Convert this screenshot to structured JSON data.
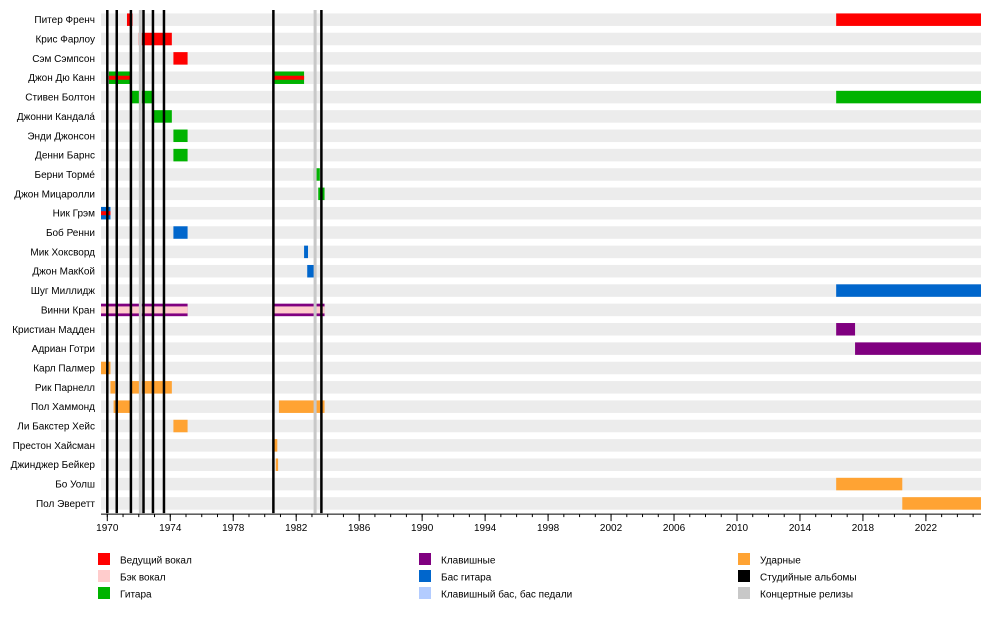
{
  "chart_data": {
    "type": "timeline",
    "x_axis": {
      "min": 1969.6,
      "max": 2025.5,
      "ticks": [
        "1970",
        "1974",
        "1978",
        "1982",
        "1986",
        "1990",
        "1994",
        "1998",
        "2002",
        "2006",
        "2010",
        "2014",
        "2018",
        "2022"
      ]
    },
    "colors": {
      "lead_vocals": "#ff0000",
      "backing_vocals": "#ffcccc",
      "guitar": "#00b300",
      "keyboards": "#800080",
      "bass": "#0066cc",
      "keyboard_bass": "#b3ccff",
      "drums": "#ffa333",
      "studio_albums": "#000000",
      "live_releases": "#c8c8c8",
      "row_band": "#ececec"
    },
    "members": [
      {
        "name": "Питер Френч",
        "bars": [
          {
            "role": "lead_vocals",
            "start": 1971.25,
            "end": 1971.6
          },
          {
            "role": "lead_vocals",
            "start": 2016.3,
            "end": 2025.5
          }
        ]
      },
      {
        "name": "Крис Фарлоу",
        "bars": [
          {
            "role": "lead_vocals",
            "start": 1972.0,
            "end": 1974.1
          }
        ]
      },
      {
        "name": "Сэм Сэмпсон",
        "bars": [
          {
            "role": "lead_vocals",
            "start": 1974.2,
            "end": 1975.1
          }
        ]
      },
      {
        "name": "Джон Дю Канн",
        "bars": [
          {
            "role": "guitar",
            "start": 1970.1,
            "end": 1971.5,
            "inner": "lead_vocals"
          },
          {
            "role": "guitar",
            "start": 1980.5,
            "end": 1982.5,
            "inner": "lead_vocals"
          }
        ]
      },
      {
        "name": "Стивен Болтон",
        "bars": [
          {
            "role": "guitar",
            "start": 1971.5,
            "end": 1972.9
          },
          {
            "role": "guitar",
            "start": 2016.3,
            "end": 2025.5
          }
        ]
      },
      {
        "name": "Джонни Кандалá",
        "bars": [
          {
            "role": "guitar",
            "start": 1972.9,
            "end": 1974.1
          }
        ]
      },
      {
        "name": "Энди Джонсон",
        "bars": [
          {
            "role": "guitar",
            "start": 1974.2,
            "end": 1975.1
          }
        ]
      },
      {
        "name": "Денни Барнс",
        "bars": [
          {
            "role": "guitar",
            "start": 1974.2,
            "end": 1975.1
          }
        ]
      },
      {
        "name": "Берни Тормé",
        "bars": [
          {
            "role": "guitar",
            "start": 1983.1,
            "end": 1983.5
          }
        ]
      },
      {
        "name": "Джон Мицаролли",
        "bars": [
          {
            "role": "guitar",
            "start": 1983.4,
            "end": 1983.8
          }
        ]
      },
      {
        "name": "Ник Грэм",
        "bars": [
          {
            "role": "bass",
            "start": 1969.6,
            "end": 1970.2,
            "inner": "lead_vocals"
          }
        ]
      },
      {
        "name": "Боб Ренни",
        "bars": [
          {
            "role": "bass",
            "start": 1974.2,
            "end": 1975.1
          }
        ]
      },
      {
        "name": "Мик Хоксворд",
        "bars": [
          {
            "role": "bass",
            "start": 1982.5,
            "end": 1982.75
          }
        ]
      },
      {
        "name": "Джон МакКой",
        "bars": [
          {
            "role": "bass",
            "start": 1982.7,
            "end": 1983.2
          }
        ]
      },
      {
        "name": "Шуг Миллидж",
        "bars": [
          {
            "role": "bass",
            "start": 2016.3,
            "end": 2025.5
          }
        ]
      },
      {
        "name": "Винни Кран",
        "bars": [
          {
            "role": "keyboards",
            "start": 1969.6,
            "end": 1975.1,
            "inner": "backing_vocals"
          },
          {
            "role": "keyboards",
            "start": 1980.5,
            "end": 1983.8,
            "inner": "backing_vocals"
          }
        ]
      },
      {
        "name": "Кристиан Мадден",
        "bars": [
          {
            "role": "keyboards",
            "start": 2016.3,
            "end": 2017.5
          }
        ]
      },
      {
        "name": "Адриан Готри",
        "bars": [
          {
            "role": "keyboards",
            "start": 2017.5,
            "end": 2025.5
          }
        ]
      },
      {
        "name": "Карл Палмер",
        "bars": [
          {
            "role": "drums",
            "start": 1969.6,
            "end": 1970.2
          }
        ]
      },
      {
        "name": "Рик Парнелл",
        "bars": [
          {
            "role": "drums",
            "start": 1970.2,
            "end": 1970.5
          },
          {
            "role": "drums",
            "start": 1971.5,
            "end": 1974.1
          }
        ]
      },
      {
        "name": "Пол Хаммонд",
        "bars": [
          {
            "role": "drums",
            "start": 1970.4,
            "end": 1971.5
          },
          {
            "role": "drums",
            "start": 1980.9,
            "end": 1983.8
          }
        ]
      },
      {
        "name": "Ли Бакстер Хейс",
        "bars": [
          {
            "role": "drums",
            "start": 1974.2,
            "end": 1975.1
          }
        ]
      },
      {
        "name": "Престон Хайсман",
        "bars": [
          {
            "role": "drums",
            "start": 1980.5,
            "end": 1980.8
          }
        ]
      },
      {
        "name": "Джинджер Бейкер",
        "bars": [
          {
            "role": "drums",
            "start": 1980.7,
            "end": 1980.85
          }
        ]
      },
      {
        "name": "Бо Уолш",
        "bars": [
          {
            "role": "drums",
            "start": 2016.3,
            "end": 2020.5
          }
        ]
      },
      {
        "name": "Пол Эверетт",
        "bars": [
          {
            "role": "drums",
            "start": 2020.5,
            "end": 2025.5
          }
        ]
      }
    ],
    "studio_albums": [
      1970.0,
      1970.6,
      1971.5,
      1972.3,
      1972.9,
      1973.6,
      1980.55,
      1983.6
    ],
    "live_releases": [
      1972.1,
      1983.2
    ],
    "legend": [
      {
        "key": "lead_vocals",
        "label": "Ведущий вокал"
      },
      {
        "key": "backing_vocals",
        "label": "Бэк вокал"
      },
      {
        "key": "guitar",
        "label": "Гитара"
      },
      {
        "key": "keyboards",
        "label": "Клавишные"
      },
      {
        "key": "bass",
        "label": "Бас гитара"
      },
      {
        "key": "keyboard_bass",
        "label": "Клавишный бас, бас педали"
      },
      {
        "key": "drums",
        "label": "Ударные"
      },
      {
        "key": "studio_albums",
        "label": "Студийные альбомы"
      },
      {
        "key": "live_releases",
        "label": "Концертные релизы"
      }
    ]
  }
}
